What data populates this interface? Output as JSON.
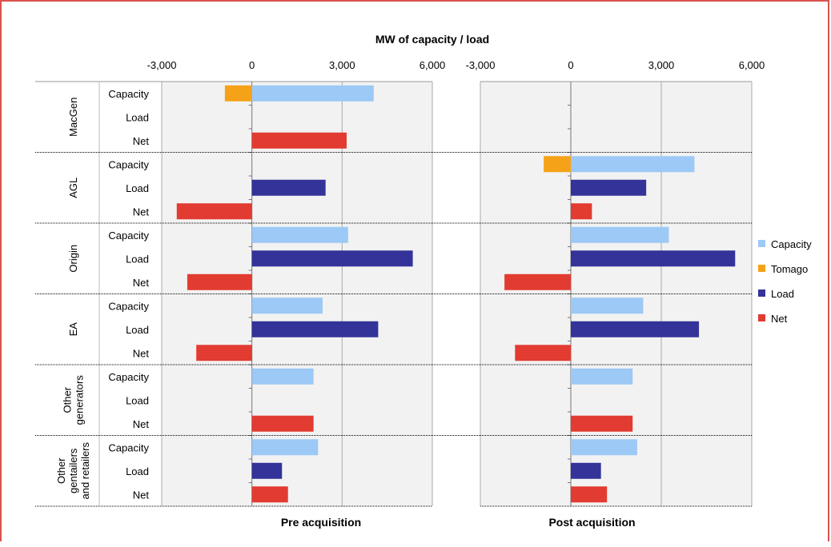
{
  "chart_data": {
    "type": "bar",
    "orientation": "horizontal",
    "title": "MW of capacity / load",
    "x_ticks": [
      -3000,
      0,
      3000,
      6000
    ],
    "x_tick_labels": [
      "-3,000",
      "0",
      "3,000",
      "6,000"
    ],
    "xlim": [
      -3000,
      6000
    ],
    "grid": true,
    "legend": {
      "position": "right",
      "entries": [
        {
          "name": "Capacity",
          "color": "#9cc9f5"
        },
        {
          "name": "Tomago",
          "color": "#f5a219"
        },
        {
          "name": "Load",
          "color": "#333399"
        },
        {
          "name": "Net",
          "color": "#e23b31"
        }
      ]
    },
    "groups": [
      {
        "label": "MacGen",
        "rows": [
          "Capacity",
          "Load",
          "Net"
        ]
      },
      {
        "label": "AGL",
        "rows": [
          "Capacity",
          "Load",
          "Net"
        ]
      },
      {
        "label": "Origin",
        "rows": [
          "Capacity",
          "Load",
          "Net"
        ]
      },
      {
        "label": "EA",
        "rows": [
          "Capacity",
          "Load",
          "Net"
        ]
      },
      {
        "label": "Other generators",
        "rows": [
          "Capacity",
          "Load",
          "Net"
        ]
      },
      {
        "label": "Other gentailers and retailers",
        "rows": [
          "Capacity",
          "Load",
          "Net"
        ]
      }
    ],
    "panels": [
      {
        "label": "Pre acquisition",
        "bars": [
          {
            "group": "MacGen",
            "row": "Capacity",
            "series": "Tomago",
            "value": -900
          },
          {
            "group": "MacGen",
            "row": "Capacity",
            "series": "Capacity",
            "value": 4050
          },
          {
            "group": "MacGen",
            "row": "Load",
            "series": "Load",
            "value": 0
          },
          {
            "group": "MacGen",
            "row": "Net",
            "series": "Net",
            "value": 3150
          },
          {
            "group": "AGL",
            "row": "Capacity",
            "series": "Capacity",
            "value": 0
          },
          {
            "group": "AGL",
            "row": "Load",
            "series": "Load",
            "value": 2450
          },
          {
            "group": "AGL",
            "row": "Net",
            "series": "Net",
            "value": -2500
          },
          {
            "group": "Origin",
            "row": "Capacity",
            "series": "Capacity",
            "value": 3200
          },
          {
            "group": "Origin",
            "row": "Load",
            "series": "Load",
            "value": 5350
          },
          {
            "group": "Origin",
            "row": "Net",
            "series": "Net",
            "value": -2150
          },
          {
            "group": "EA",
            "row": "Capacity",
            "series": "Capacity",
            "value": 2350
          },
          {
            "group": "EA",
            "row": "Load",
            "series": "Load",
            "value": 4200
          },
          {
            "group": "EA",
            "row": "Net",
            "series": "Net",
            "value": -1850
          },
          {
            "group": "Other generators",
            "row": "Capacity",
            "series": "Capacity",
            "value": 2050
          },
          {
            "group": "Other generators",
            "row": "Load",
            "series": "Load",
            "value": 0
          },
          {
            "group": "Other generators",
            "row": "Net",
            "series": "Net",
            "value": 2050
          },
          {
            "group": "Other gentailers and retailers",
            "row": "Capacity",
            "series": "Capacity",
            "value": 2200
          },
          {
            "group": "Other gentailers and retailers",
            "row": "Load",
            "series": "Load",
            "value": 1000
          },
          {
            "group": "Other gentailers and retailers",
            "row": "Net",
            "series": "Net",
            "value": 1200
          }
        ]
      },
      {
        "label": "Post acquisition",
        "bars": [
          {
            "group": "MacGen",
            "row": "Capacity",
            "series": "Capacity",
            "value": 0
          },
          {
            "group": "MacGen",
            "row": "Load",
            "series": "Load",
            "value": 0
          },
          {
            "group": "MacGen",
            "row": "Net",
            "series": "Net",
            "value": 0
          },
          {
            "group": "AGL",
            "row": "Capacity",
            "series": "Tomago",
            "value": -900
          },
          {
            "group": "AGL",
            "row": "Capacity",
            "series": "Capacity",
            "value": 4100
          },
          {
            "group": "AGL",
            "row": "Load",
            "series": "Load",
            "value": 2500
          },
          {
            "group": "AGL",
            "row": "Net",
            "series": "Net",
            "value": 700
          },
          {
            "group": "Origin",
            "row": "Capacity",
            "series": "Capacity",
            "value": 3250
          },
          {
            "group": "Origin",
            "row": "Load",
            "series": "Load",
            "value": 5450
          },
          {
            "group": "Origin",
            "row": "Net",
            "series": "Net",
            "value": -2200
          },
          {
            "group": "EA",
            "row": "Capacity",
            "series": "Capacity",
            "value": 2400
          },
          {
            "group": "EA",
            "row": "Load",
            "series": "Load",
            "value": 4250
          },
          {
            "group": "EA",
            "row": "Net",
            "series": "Net",
            "value": -1850
          },
          {
            "group": "Other generators",
            "row": "Capacity",
            "series": "Capacity",
            "value": 2050
          },
          {
            "group": "Other generators",
            "row": "Load",
            "series": "Load",
            "value": 0
          },
          {
            "group": "Other generators",
            "row": "Net",
            "series": "Net",
            "value": 2050
          },
          {
            "group": "Other gentailers and retailers",
            "row": "Capacity",
            "series": "Capacity",
            "value": 2200
          },
          {
            "group": "Other gentailers and retailers",
            "row": "Load",
            "series": "Load",
            "value": 1000
          },
          {
            "group": "Other gentailers and retailers",
            "row": "Net",
            "series": "Net",
            "value": 1200
          }
        ]
      }
    ]
  }
}
